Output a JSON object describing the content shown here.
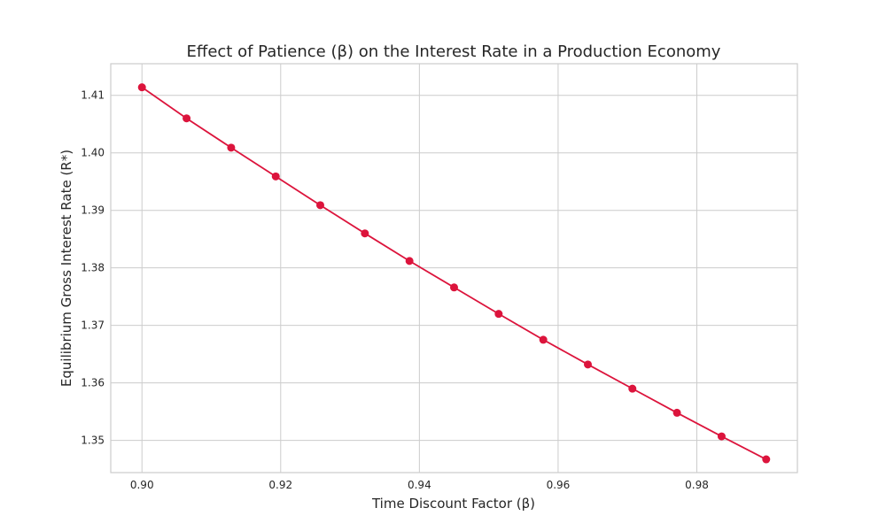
{
  "chart_data": {
    "type": "line",
    "title": "Effect of Patience (β) on the Interest Rate in a Production Economy",
    "xlabel": "Time Discount Factor (β)",
    "ylabel": "Equilibrium Gross Interest Rate (R*)",
    "xlim": [
      0.8955,
      0.9945
    ],
    "ylim": [
      1.3444,
      1.4155
    ],
    "xticks": [
      "0.90",
      "0.92",
      "0.94",
      "0.96",
      "0.98"
    ],
    "yticks": [
      "1.35",
      "1.36",
      "1.37",
      "1.38",
      "1.39",
      "1.40",
      "1.41"
    ],
    "grid": true,
    "series": [
      {
        "color": "#dc143c",
        "marker": "circle",
        "x": [
          0.9,
          0.90643,
          0.91286,
          0.91929,
          0.92571,
          0.93214,
          0.93857,
          0.945,
          0.95143,
          0.95786,
          0.96429,
          0.97071,
          0.97714,
          0.98357,
          0.99
        ],
        "y": [
          1.4114,
          1.406,
          1.4009,
          1.3959,
          1.3909,
          1.386,
          1.3812,
          1.3766,
          1.372,
          1.3675,
          1.3632,
          1.359,
          1.3548,
          1.3507,
          1.3467
        ]
      }
    ]
  }
}
